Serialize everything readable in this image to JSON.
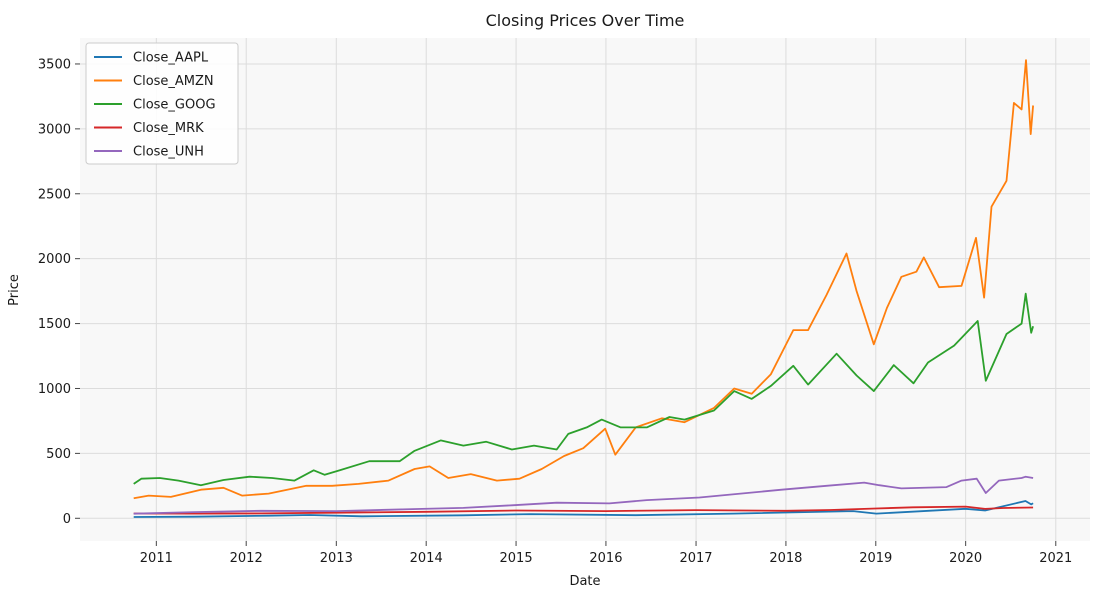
{
  "chart_data": {
    "type": "line",
    "title": "Closing Prices Over Time",
    "xlabel": "Date",
    "ylabel": "Price",
    "xlim": [
      "2010-02-25",
      "2021-05-20"
    ],
    "ylim": [
      -175,
      3700
    ],
    "grid": true,
    "legend_position": "top-left",
    "x_ticks": [
      "2011",
      "2012",
      "2013",
      "2014",
      "2015",
      "2016",
      "2017",
      "2018",
      "2019",
      "2020",
      "2021"
    ],
    "y_ticks": [
      0,
      500,
      1000,
      1500,
      2000,
      2500,
      3000,
      3500
    ],
    "series": [
      {
        "name": "Close_AAPL",
        "color": "#1f77b4",
        "points": [
          [
            "2010-10-01",
            10
          ],
          [
            "2011-06-01",
            12
          ],
          [
            "2012-04-01",
            20
          ],
          [
            "2012-09-15",
            25
          ],
          [
            "2013-04-15",
            15
          ],
          [
            "2014-06-01",
            23
          ],
          [
            "2015-03-01",
            32
          ],
          [
            "2016-05-01",
            24
          ],
          [
            "2017-06-01",
            36
          ],
          [
            "2018-10-01",
            55
          ],
          [
            "2019-01-03",
            36
          ],
          [
            "2019-12-31",
            73
          ],
          [
            "2020-03-20",
            60
          ],
          [
            "2020-08-31",
            133
          ],
          [
            "2020-09-23",
            107
          ],
          [
            "2020-10-01",
            116
          ]
        ]
      },
      {
        "name": "Close_AMZN",
        "color": "#ff7f0e",
        "points": [
          [
            "2010-10-01",
            155
          ],
          [
            "2010-12-01",
            175
          ],
          [
            "2011-03-01",
            165
          ],
          [
            "2011-07-01",
            220
          ],
          [
            "2011-10-01",
            235
          ],
          [
            "2011-12-15",
            175
          ],
          [
            "2012-04-01",
            190
          ],
          [
            "2012-09-01",
            250
          ],
          [
            "2012-12-15",
            250
          ],
          [
            "2013-04-01",
            265
          ],
          [
            "2013-08-01",
            290
          ],
          [
            "2013-11-15",
            380
          ],
          [
            "2014-01-15",
            400
          ],
          [
            "2014-04-01",
            310
          ],
          [
            "2014-07-01",
            340
          ],
          [
            "2014-10-15",
            290
          ],
          [
            "2015-01-15",
            305
          ],
          [
            "2015-04-15",
            380
          ],
          [
            "2015-07-15",
            480
          ],
          [
            "2015-10-01",
            540
          ],
          [
            "2015-12-29",
            690
          ],
          [
            "2016-02-08",
            490
          ],
          [
            "2016-05-01",
            700
          ],
          [
            "2016-08-15",
            770
          ],
          [
            "2016-11-15",
            740
          ],
          [
            "2017-03-15",
            850
          ],
          [
            "2017-06-05",
            1000
          ],
          [
            "2017-08-15",
            960
          ],
          [
            "2017-11-01",
            1110
          ],
          [
            "2018-01-31",
            1450
          ],
          [
            "2018-04-01",
            1450
          ],
          [
            "2018-06-15",
            1720
          ],
          [
            "2018-09-04",
            2040
          ],
          [
            "2018-10-15",
            1750
          ],
          [
            "2018-12-24",
            1340
          ],
          [
            "2019-02-15",
            1620
          ],
          [
            "2019-04-15",
            1860
          ],
          [
            "2019-06-15",
            1900
          ],
          [
            "2019-07-15",
            2010
          ],
          [
            "2019-09-15",
            1780
          ],
          [
            "2019-12-15",
            1790
          ],
          [
            "2020-02-12",
            2160
          ],
          [
            "2020-03-16",
            1700
          ],
          [
            "2020-04-15",
            2400
          ],
          [
            "2020-06-15",
            2600
          ],
          [
            "2020-07-15",
            3200
          ],
          [
            "2020-08-15",
            3150
          ],
          [
            "2020-09-02",
            3530
          ],
          [
            "2020-09-21",
            2960
          ],
          [
            "2020-10-01",
            3180
          ]
        ]
      },
      {
        "name": "Close_GOOG",
        "color": "#2ca02c",
        "points": [
          [
            "2010-10-01",
            265
          ],
          [
            "2010-11-01",
            305
          ],
          [
            "2011-01-15",
            310
          ],
          [
            "2011-04-01",
            290
          ],
          [
            "2011-07-01",
            255
          ],
          [
            "2011-10-01",
            295
          ],
          [
            "2012-01-15",
            320
          ],
          [
            "2012-04-15",
            310
          ],
          [
            "2012-07-15",
            290
          ],
          [
            "2012-10-01",
            370
          ],
          [
            "2012-11-15",
            335
          ],
          [
            "2013-01-15",
            370
          ],
          [
            "2013-05-15",
            440
          ],
          [
            "2013-09-15",
            440
          ],
          [
            "2013-11-15",
            520
          ],
          [
            "2014-03-01",
            600
          ],
          [
            "2014-06-01",
            560
          ],
          [
            "2014-09-01",
            590
          ],
          [
            "2014-12-15",
            530
          ],
          [
            "2015-03-15",
            560
          ],
          [
            "2015-06-15",
            530
          ],
          [
            "2015-08-01",
            650
          ],
          [
            "2015-10-15",
            700
          ],
          [
            "2015-12-15",
            760
          ],
          [
            "2016-03-01",
            700
          ],
          [
            "2016-06-15",
            700
          ],
          [
            "2016-09-15",
            780
          ],
          [
            "2016-11-15",
            760
          ],
          [
            "2017-03-15",
            830
          ],
          [
            "2017-06-05",
            980
          ],
          [
            "2017-08-15",
            920
          ],
          [
            "2017-11-01",
            1020
          ],
          [
            "2018-01-31",
            1175
          ],
          [
            "2018-04-01",
            1030
          ],
          [
            "2018-07-26",
            1268
          ],
          [
            "2018-10-15",
            1100
          ],
          [
            "2018-12-24",
            980
          ],
          [
            "2019-03-15",
            1180
          ],
          [
            "2019-06-03",
            1040
          ],
          [
            "2019-08-01",
            1200
          ],
          [
            "2019-11-15",
            1330
          ],
          [
            "2020-02-19",
            1520
          ],
          [
            "2020-03-23",
            1060
          ],
          [
            "2020-06-15",
            1420
          ],
          [
            "2020-08-15",
            1500
          ],
          [
            "2020-09-01",
            1730
          ],
          [
            "2020-09-23",
            1430
          ],
          [
            "2020-10-01",
            1480
          ]
        ]
      },
      {
        "name": "Close_MRK",
        "color": "#d62728",
        "points": [
          [
            "2010-10-01",
            37
          ],
          [
            "2011-06-01",
            36
          ],
          [
            "2012-03-01",
            38
          ],
          [
            "2013-01-01",
            43
          ],
          [
            "2014-01-01",
            50
          ],
          [
            "2015-01-01",
            60
          ],
          [
            "2016-01-01",
            55
          ],
          [
            "2017-01-01",
            63
          ],
          [
            "2018-01-01",
            58
          ],
          [
            "2018-07-01",
            64
          ],
          [
            "2019-01-01",
            75
          ],
          [
            "2019-06-01",
            85
          ],
          [
            "2020-01-01",
            90
          ],
          [
            "2020-03-20",
            72
          ],
          [
            "2020-06-01",
            79
          ],
          [
            "2020-10-01",
            83
          ]
        ]
      },
      {
        "name": "Close_UNH",
        "color": "#9467bd",
        "points": [
          [
            "2010-10-01",
            35
          ],
          [
            "2011-06-01",
            48
          ],
          [
            "2012-03-01",
            58
          ],
          [
            "2013-01-01",
            55
          ],
          [
            "2013-12-15",
            72
          ],
          [
            "2014-06-01",
            80
          ],
          [
            "2014-12-15",
            100
          ],
          [
            "2015-06-15",
            120
          ],
          [
            "2016-01-15",
            115
          ],
          [
            "2016-06-15",
            140
          ],
          [
            "2017-01-15",
            160
          ],
          [
            "2017-12-15",
            220
          ],
          [
            "2018-06-15",
            250
          ],
          [
            "2018-11-15",
            275
          ],
          [
            "2019-01-15",
            255
          ],
          [
            "2019-04-15",
            230
          ],
          [
            "2019-10-15",
            240
          ],
          [
            "2019-12-15",
            290
          ],
          [
            "2020-02-15",
            305
          ],
          [
            "2020-03-23",
            195
          ],
          [
            "2020-05-15",
            290
          ],
          [
            "2020-08-15",
            310
          ],
          [
            "2020-09-01",
            320
          ],
          [
            "2020-10-01",
            310
          ]
        ]
      }
    ]
  }
}
